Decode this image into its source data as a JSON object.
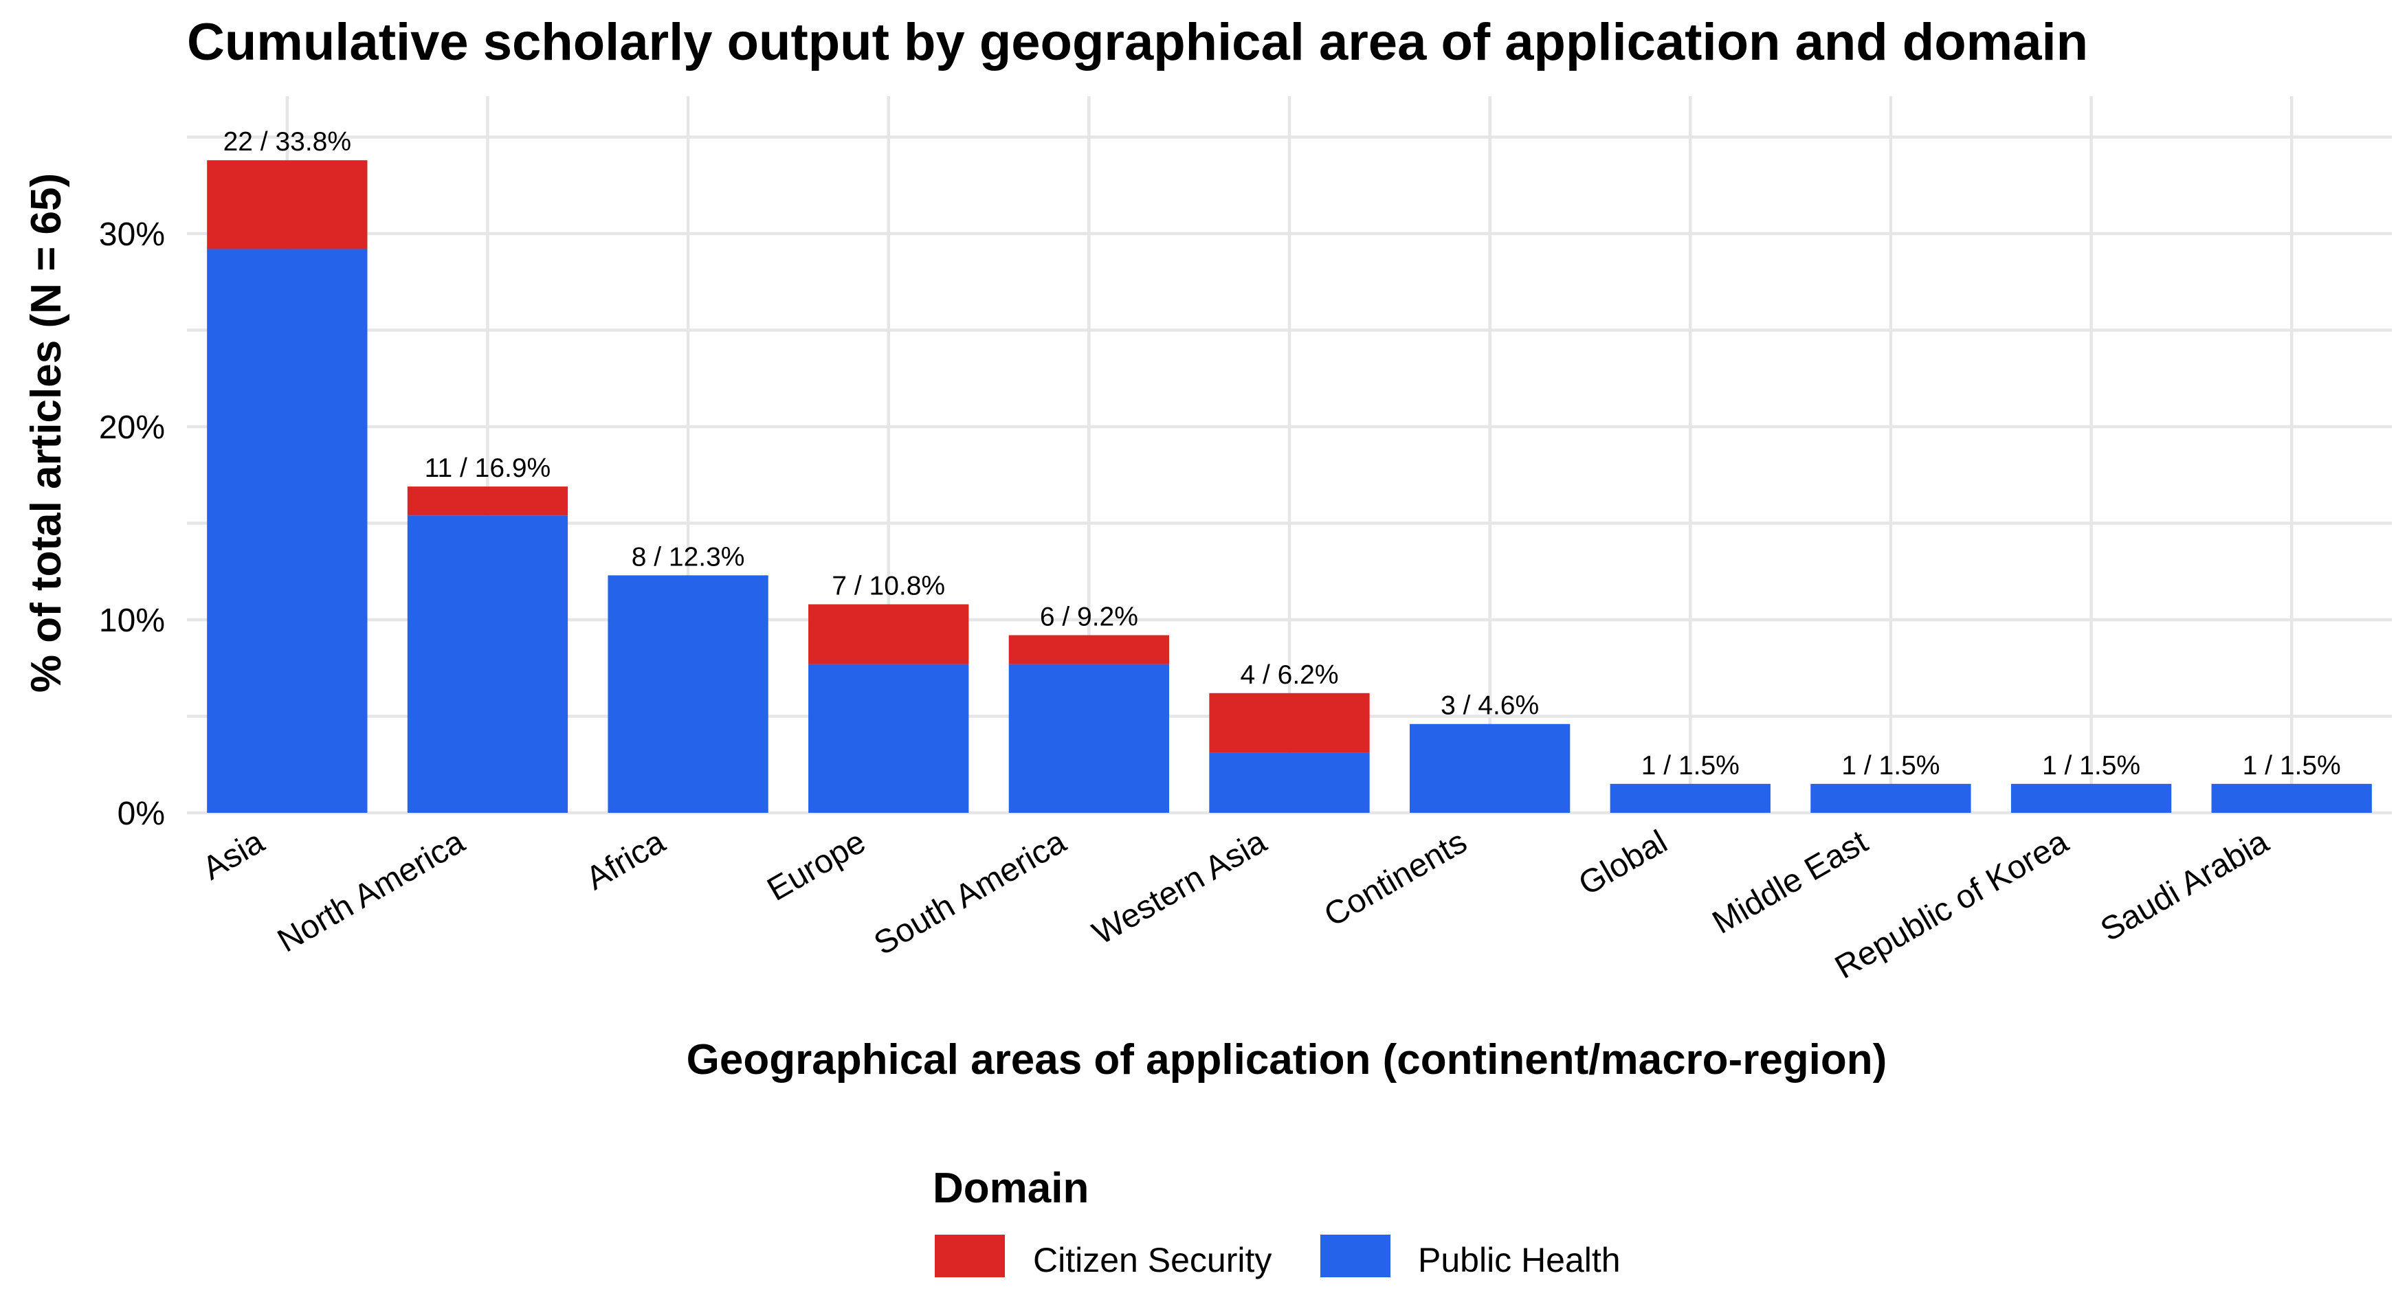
{
  "chart_data": {
    "type": "bar",
    "stacked": true,
    "title": "Cumulative scholarly output by geographical area of application and domain",
    "xlabel": "Geographical areas of application (continent/macro-region)",
    "ylabel": "% of total articles (N = 65)",
    "ylim": [
      0,
      35
    ],
    "y_ticks": [
      "0%",
      "10%",
      "20%",
      "30%"
    ],
    "grid": true,
    "categories": [
      "Asia",
      "North America",
      "Africa",
      "Europe",
      "South America",
      "Western Asia",
      "Continents",
      "Global",
      "Middle East",
      "Republic of Korea",
      "Saudi Arabia"
    ],
    "series": [
      {
        "name": "Public Health",
        "color": "#2563eb",
        "values": [
          29.2,
          15.4,
          12.3,
          7.7,
          7.7,
          3.1,
          4.6,
          1.5,
          1.5,
          1.5,
          1.5
        ]
      },
      {
        "name": "Citizen Security",
        "color": "#dc2626",
        "values": [
          4.6,
          1.5,
          0,
          3.1,
          1.5,
          3.1,
          0,
          0,
          0,
          0,
          0
        ]
      }
    ],
    "bar_labels": [
      "22 / 33.8%",
      "11 / 16.9%",
      "8 / 12.3%",
      "7 / 10.8%",
      "6 / 9.2%",
      "4 / 6.2%",
      "3 / 4.6%",
      "1 / 1.5%",
      "1 / 1.5%",
      "1 / 1.5%",
      "1 / 1.5%"
    ],
    "legend": {
      "title": "Domain",
      "placement": "bottom",
      "entries": [
        {
          "label": "Citizen Security",
          "color": "#dc2626"
        },
        {
          "label": "Public Health",
          "color": "#2563eb"
        }
      ]
    }
  }
}
